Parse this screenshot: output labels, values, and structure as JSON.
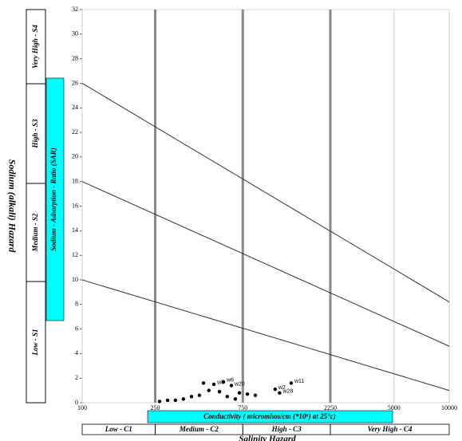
{
  "chart_data": {
    "type": "scatter",
    "y_label": "Sodium (alkali) Hazard",
    "inner_y_label": "Sodium - Adsorption - Ratio (SAR)",
    "x_label": "Conductivity ( micromhos/cm (*10⁶) at 25°c)",
    "x_class_title": "Salinity Hazard",
    "sodium_classes": [
      "Very High - S4",
      "High - S3",
      "Medium - S2",
      "Low - S1"
    ],
    "salinity_classes": [
      "Low - C1",
      "Medium - C2",
      "High - C3",
      "Very High - C4"
    ],
    "xscale": "log",
    "xlim": [
      100,
      10000
    ],
    "ylim": [
      0,
      32
    ],
    "xticks": [
      100,
      250,
      750,
      2250,
      5000,
      10000
    ],
    "yticks": [
      0,
      2,
      4,
      6,
      8,
      10,
      12,
      14,
      16,
      18,
      20,
      22,
      24,
      26,
      28,
      30,
      32
    ],
    "class_boundaries": [
      250,
      750,
      2250
    ],
    "boundaries": [
      {
        "x": [
          100,
          10000
        ],
        "y": [
          26,
          8.2
        ]
      },
      {
        "x": [
          100,
          10000
        ],
        "y": [
          18,
          4.6
        ]
      },
      {
        "x": [
          100,
          10000
        ],
        "y": [
          10,
          1
        ]
      }
    ],
    "series": [
      {
        "color": "#000000",
        "x": [
          458,
          522,
          589,
          650,
          490,
          560,
          719,
          795,
          878,
          394,
          356,
          322,
          292,
          264,
          435,
          617,
          683,
          1190,
          1377,
          1126
        ],
        "y": [
          1.6,
          1.5,
          1.7,
          1.4,
          1.0,
          0.9,
          0.8,
          0.7,
          0.6,
          0.5,
          0.3,
          0.2,
          0.2,
          0.1,
          0.6,
          0.5,
          0.3,
          0.8,
          1.6,
          1.1
        ],
        "labels": [
          null,
          "w8",
          "w6",
          "w20",
          null,
          null,
          null,
          null,
          null,
          null,
          null,
          null,
          null,
          null,
          null,
          null,
          null,
          "w28",
          "w11",
          "w2"
        ]
      }
    ]
  }
}
